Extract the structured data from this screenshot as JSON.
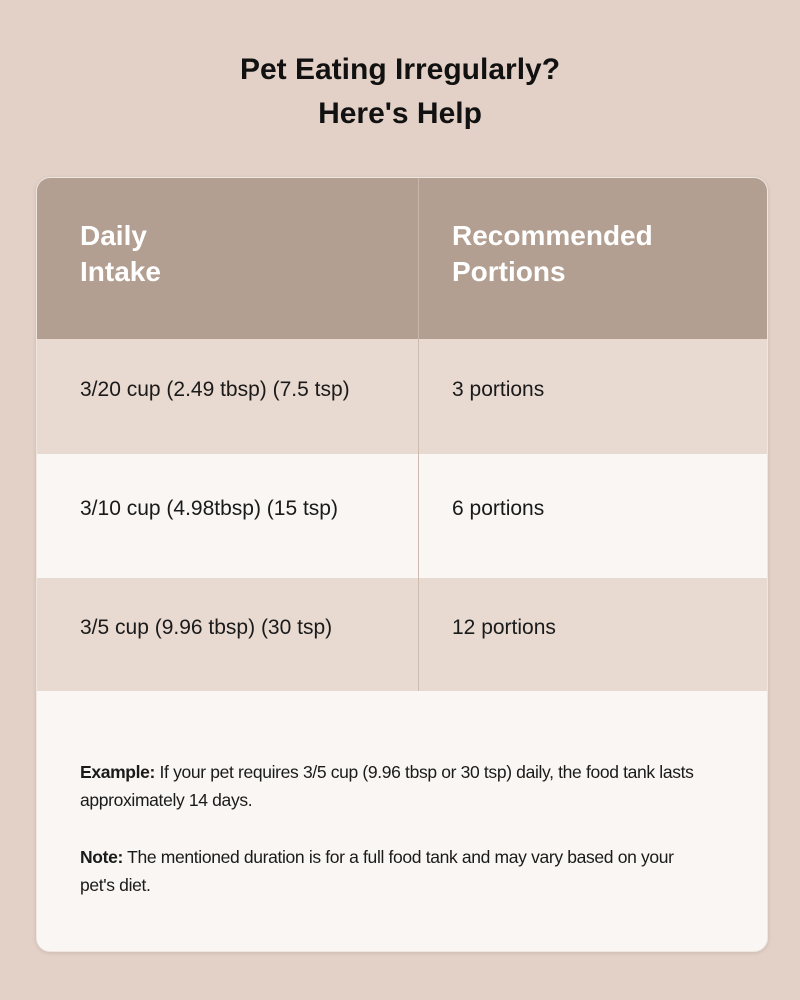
{
  "title": {
    "line1": "Pet Eating Irregularly?",
    "line2": "Here's Help"
  },
  "table": {
    "headers": [
      {
        "line1": "Daily",
        "line2": "Intake"
      },
      {
        "line1": "Recommended",
        "line2": "Portions"
      }
    ],
    "rows": [
      {
        "intake": "3/20 cup (2.49 tbsp) (7.5 tsp)",
        "portions": "3 portions"
      },
      {
        "intake": "3/10 cup (4.98tbsp) (15 tsp)",
        "portions": "6 portions"
      },
      {
        "intake": "3/5 cup (9.96 tbsp) (30 tsp)",
        "portions": "12 portions"
      }
    ]
  },
  "notes": {
    "example_label": "Example:",
    "example_text": " If your pet requires 3/5 cup (9.96 tbsp or 30 tsp) daily, the food tank lasts approximately 14 days.",
    "note_label": "Note:",
    "note_text": " The mentioned duration is for a full food tank and may vary based on your pet's diet."
  },
  "colors": {
    "background": "#e3d1c7",
    "header": "#b39f91",
    "row_shaded": "#e8d9d1",
    "row_light": "#f9f6f3"
  }
}
